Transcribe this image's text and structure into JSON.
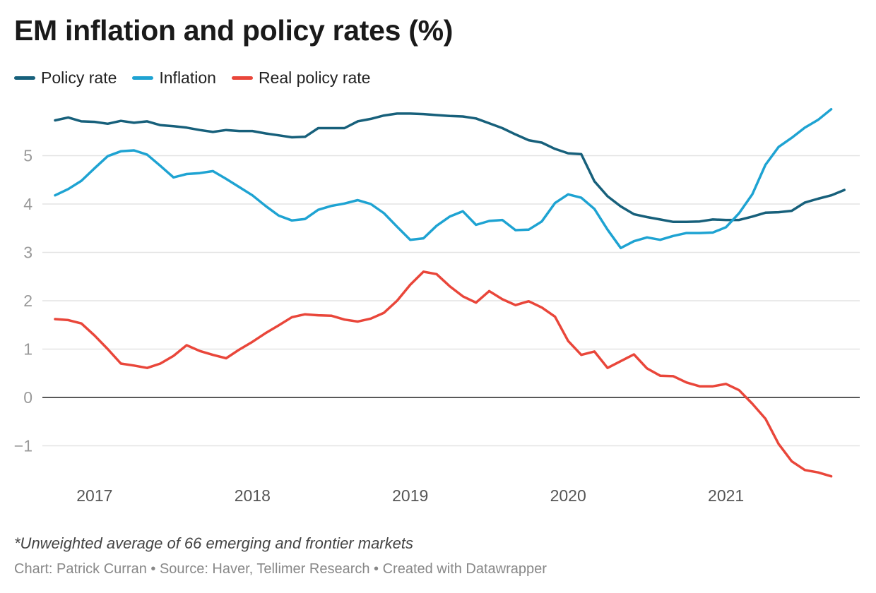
{
  "chart_data": {
    "type": "line",
    "title": "EM inflation and policy rates (%)",
    "note": "*Unweighted average of 66 emerging and frontier markets",
    "credit": "Chart: Patrick Curran • Source: Haver, Tellimer Research • Created with Datawrapper",
    "x_start": "2016-10",
    "x_frequency": "monthly",
    "x_ticks": [
      {
        "label": "2017",
        "month_index": 3
      },
      {
        "label": "2018",
        "month_index": 15
      },
      {
        "label": "2019",
        "month_index": 27
      },
      {
        "label": "2020",
        "month_index": 39
      },
      {
        "label": "2021",
        "month_index": 51
      }
    ],
    "y_ticks": [
      {
        "label": "5",
        "value": 5
      },
      {
        "label": "4",
        "value": 4
      },
      {
        "label": "3",
        "value": 3
      },
      {
        "label": "2",
        "value": 2
      },
      {
        "label": "1",
        "value": 1
      },
      {
        "label": "0",
        "value": 0
      },
      {
        "label": "−1",
        "value": -1
      }
    ],
    "ylim": [
      -1.7,
      6.1
    ],
    "grid": true,
    "legend_position": "top-left",
    "series": [
      {
        "name": "Policy rate",
        "color": "#17607b",
        "values": [
          5.73,
          5.79,
          5.71,
          5.7,
          5.66,
          5.72,
          5.68,
          5.71,
          5.63,
          5.61,
          5.58,
          5.53,
          5.49,
          5.53,
          5.51,
          5.51,
          5.46,
          5.42,
          5.38,
          5.39,
          5.57,
          5.57,
          5.57,
          5.71,
          5.76,
          5.83,
          5.87,
          5.87,
          5.86,
          5.84,
          5.82,
          5.81,
          5.77,
          5.67,
          5.57,
          5.44,
          5.32,
          5.27,
          5.14,
          5.05,
          5.03,
          4.47,
          4.16,
          3.95,
          3.79,
          3.73,
          3.68,
          3.63,
          3.63,
          3.64,
          3.68,
          3.67,
          3.67,
          3.74,
          3.82,
          3.83,
          3.86,
          4.03,
          4.11,
          4.18,
          4.29
        ]
      },
      {
        "name": "Inflation",
        "color": "#1ea3d2",
        "values": [
          4.18,
          4.31,
          4.48,
          4.74,
          4.99,
          5.09,
          5.11,
          5.02,
          4.79,
          4.55,
          4.62,
          4.64,
          4.68,
          4.52,
          4.35,
          4.18,
          3.96,
          3.76,
          3.66,
          3.69,
          3.88,
          3.96,
          4.01,
          4.08,
          4.0,
          3.81,
          3.53,
          3.26,
          3.29,
          3.55,
          3.74,
          3.85,
          3.57,
          3.65,
          3.67,
          3.46,
          3.47,
          3.64,
          4.02,
          4.2,
          4.13,
          3.9,
          3.47,
          3.09,
          3.23,
          3.31,
          3.26,
          3.34,
          3.4,
          3.4,
          3.41,
          3.52,
          3.81,
          4.2,
          4.81,
          5.18,
          5.37,
          5.58,
          5.74,
          5.96
        ]
      },
      {
        "name": "Real policy rate",
        "color": "#e9463a",
        "values": [
          1.62,
          1.6,
          1.53,
          1.28,
          1.0,
          0.7,
          0.66,
          0.61,
          0.7,
          0.86,
          1.08,
          0.96,
          0.88,
          0.81,
          0.99,
          1.15,
          1.33,
          1.49,
          1.66,
          1.72,
          1.7,
          1.69,
          1.61,
          1.57,
          1.63,
          1.75,
          2.0,
          2.33,
          2.6,
          2.55,
          2.3,
          2.09,
          1.96,
          2.2,
          2.03,
          1.91,
          1.99,
          1.86,
          1.67,
          1.17,
          0.88,
          0.95,
          0.61,
          0.75,
          0.89,
          0.6,
          0.45,
          0.44,
          0.31,
          0.23,
          0.23,
          0.28,
          0.15,
          -0.13,
          -0.44,
          -0.96,
          -1.32,
          -1.5,
          -1.55,
          -1.63
        ]
      }
    ]
  }
}
